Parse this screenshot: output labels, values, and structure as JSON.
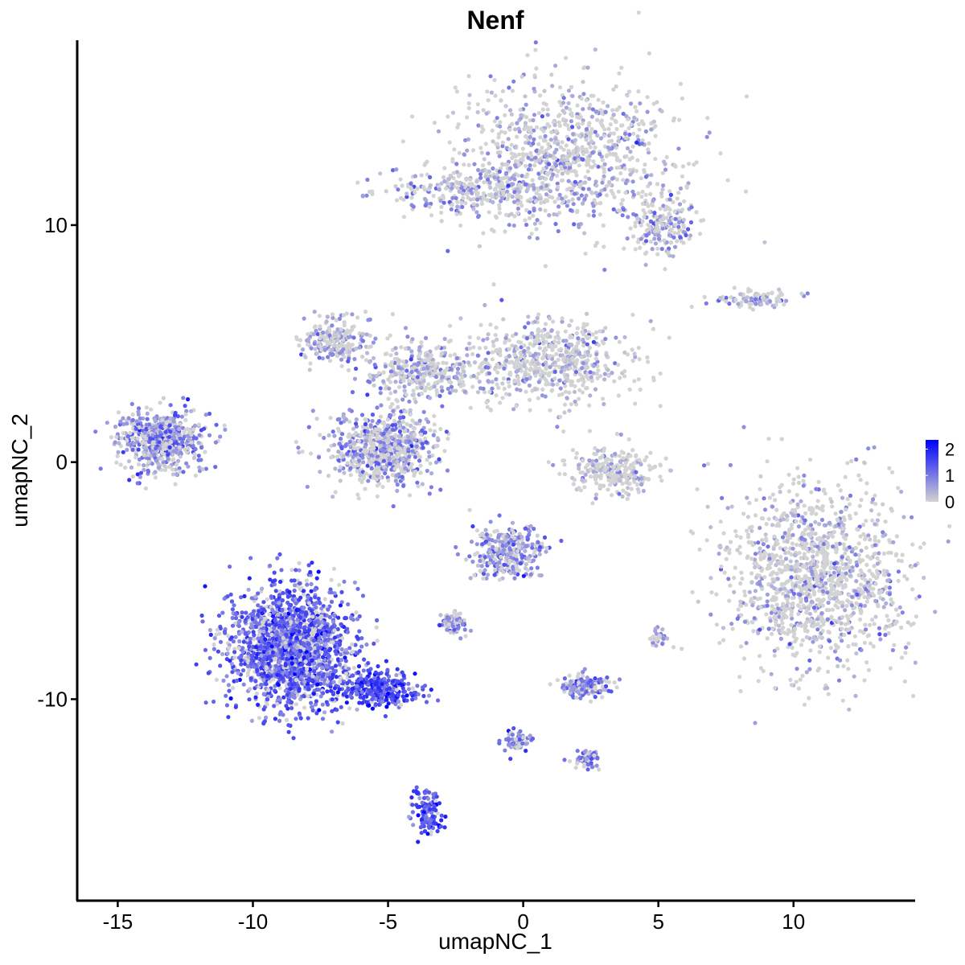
{
  "chart_data": {
    "type": "scatter",
    "title": "Nenf",
    "xlabel": "umapNC_1",
    "ylabel": "umapNC_2",
    "xlim": [
      -16.5,
      14.5
    ],
    "ylim": [
      -18.5,
      17.8
    ],
    "x_ticks": [
      -15,
      -10,
      -5,
      0,
      5,
      10
    ],
    "x_tick_labels": [
      "-15",
      "-10",
      "-5",
      "0",
      "5",
      "10"
    ],
    "y_ticks": [
      -10,
      0,
      10
    ],
    "y_tick_labels": [
      "-10",
      "0",
      "10"
    ],
    "grid": false,
    "legend": {
      "placement": "right",
      "type": "colorbar",
      "ticks": [
        0,
        1,
        2
      ],
      "tick_labels": [
        "0",
        "1",
        "2"
      ],
      "range": [
        0,
        2.35
      ],
      "color_low": "#d3d3d3",
      "color_high": "#0000ff"
    },
    "point_color_low": "#d3d3d3",
    "point_color_high": "#0000ff",
    "clusters": [
      {
        "name": "top-right-large",
        "cx": 1.8,
        "cy": 13.0,
        "sx": 2.6,
        "sy": 1.9,
        "n": 900,
        "expr": 0.45
      },
      {
        "name": "top-arm",
        "cx": -1.6,
        "cy": 11.4,
        "sx": 2.2,
        "sy": 0.6,
        "n": 300,
        "expr": 0.55
      },
      {
        "name": "top-right-lobe",
        "cx": 5.2,
        "cy": 10.0,
        "sx": 0.7,
        "sy": 0.8,
        "n": 180,
        "expr": 0.7
      },
      {
        "name": "right-thin",
        "cx": 8.6,
        "cy": 6.9,
        "sx": 1.1,
        "sy": 0.25,
        "n": 90,
        "expr": 0.45
      },
      {
        "name": "mid-left-arm",
        "cx": -7.0,
        "cy": 5.1,
        "sx": 0.8,
        "sy": 0.6,
        "n": 220,
        "expr": 0.55
      },
      {
        "name": "mid-right-body",
        "cx": 0.7,
        "cy": 4.2,
        "sx": 2.1,
        "sy": 1.1,
        "n": 650,
        "expr": 0.35
      },
      {
        "name": "mid-stem",
        "cx": -3.8,
        "cy": 3.8,
        "sx": 1.2,
        "sy": 0.7,
        "n": 300,
        "expr": 0.5
      },
      {
        "name": "mid-ring",
        "cx": -5.2,
        "cy": 0.6,
        "sx": 1.25,
        "sy": 1.0,
        "n": 700,
        "expr": 0.7
      },
      {
        "name": "left-cluster",
        "cx": -13.4,
        "cy": 0.9,
        "sx": 1.0,
        "sy": 0.8,
        "n": 550,
        "expr": 0.85
      },
      {
        "name": "center-small",
        "cx": 3.4,
        "cy": -0.3,
        "sx": 1.0,
        "sy": 0.6,
        "n": 260,
        "expr": 0.25
      },
      {
        "name": "right-large",
        "cx": 10.8,
        "cy": -4.8,
        "sx": 2.0,
        "sy": 2.4,
        "n": 1300,
        "expr": 0.35
      },
      {
        "name": "center-lower",
        "cx": -0.6,
        "cy": -3.8,
        "sx": 0.8,
        "sy": 0.7,
        "n": 320,
        "expr": 0.8
      },
      {
        "name": "center-lower-left",
        "cx": -2.6,
        "cy": -6.8,
        "sx": 0.3,
        "sy": 0.3,
        "n": 80,
        "expr": 0.75
      },
      {
        "name": "big-bottom-left",
        "cx": -8.6,
        "cy": -7.8,
        "sx": 1.4,
        "sy": 1.6,
        "n": 1800,
        "expr": 1.25
      },
      {
        "name": "bottom-left-tail",
        "cx": -5.3,
        "cy": -9.6,
        "sx": 1.0,
        "sy": 0.45,
        "n": 300,
        "expr": 1.5
      },
      {
        "name": "bottom-left-lobe",
        "cx": -3.5,
        "cy": -14.8,
        "sx": 0.35,
        "sy": 0.6,
        "n": 120,
        "expr": 1.45
      },
      {
        "name": "lower-middle",
        "cx": 2.3,
        "cy": -9.5,
        "sx": 0.6,
        "sy": 0.3,
        "n": 150,
        "expr": 0.9
      },
      {
        "name": "lower-tail-end",
        "cx": 2.4,
        "cy": -12.5,
        "sx": 0.35,
        "sy": 0.25,
        "n": 60,
        "expr": 1.0
      },
      {
        "name": "lower-tail-start",
        "cx": -0.2,
        "cy": -11.8,
        "sx": 0.35,
        "sy": 0.3,
        "n": 70,
        "expr": 0.95
      },
      {
        "name": "small-right-dot",
        "cx": 5.0,
        "cy": -7.4,
        "sx": 0.2,
        "sy": 0.25,
        "n": 30,
        "expr": 0.85
      }
    ]
  }
}
